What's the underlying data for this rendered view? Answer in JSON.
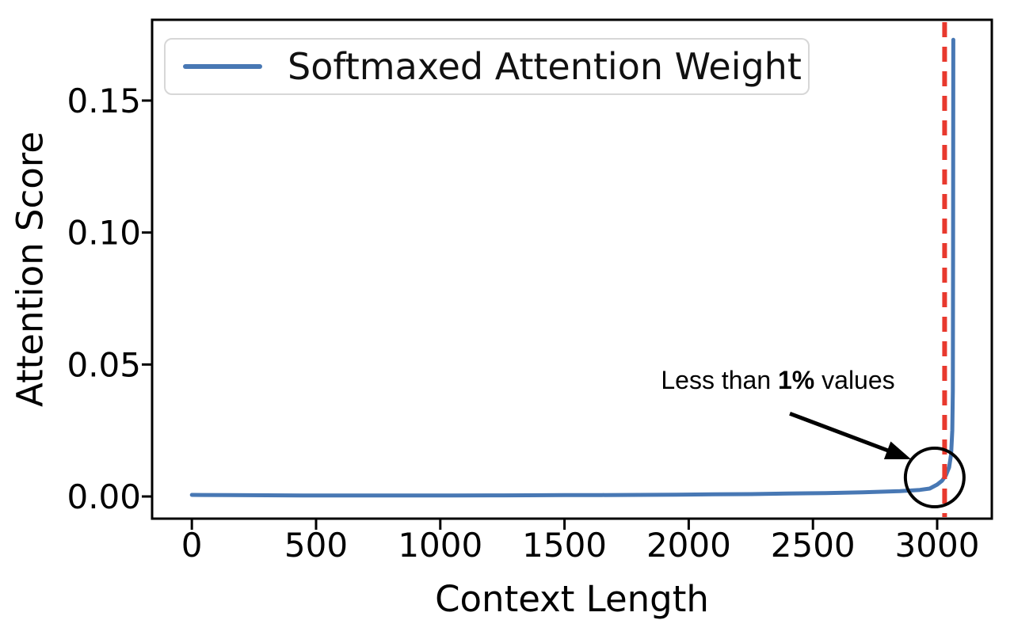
{
  "figure": {
    "background": "#ffffff",
    "text_color": "#000000"
  },
  "chart_data": {
    "type": "line",
    "title": "",
    "xlabel": "Context Length",
    "ylabel": "Attention Score",
    "grid": false,
    "xlim": [
      -160,
      3220
    ],
    "ylim": [
      -0.0084,
      0.1806
    ],
    "xticks": {
      "values": [
        0,
        500,
        1000,
        1500,
        2000,
        2500,
        3000
      ],
      "labels": [
        "0",
        "500",
        "1000",
        "1500",
        "2000",
        "2500",
        "3000"
      ]
    },
    "yticks": {
      "values": [
        0.0,
        0.05,
        0.1,
        0.15
      ],
      "labels": [
        "0.00",
        "0.05",
        "0.10",
        "0.15"
      ]
    },
    "legend": {
      "position": "upper left",
      "entries": [
        {
          "label": "Softmaxed Attention Weight",
          "color": "#4878b4"
        }
      ]
    },
    "series": [
      {
        "name": "Softmaxed Attention Weight",
        "color": "#4878b4",
        "x": [
          0,
          150,
          300,
          450,
          600,
          750,
          900,
          1050,
          1200,
          1350,
          1500,
          1650,
          1800,
          1950,
          2100,
          2250,
          2400,
          2550,
          2700,
          2850,
          2930,
          2970,
          3000,
          3020,
          3035,
          3048,
          3056,
          3061,
          3063,
          3064,
          3065
        ],
        "y": [
          0.0006,
          0.0005,
          0.00045,
          0.0004,
          0.0004,
          0.0004,
          0.0004,
          0.0004,
          0.00042,
          0.00045,
          0.0005,
          0.00055,
          0.0006,
          0.0007,
          0.0008,
          0.0009,
          0.0011,
          0.0013,
          0.0016,
          0.002,
          0.0025,
          0.003,
          0.0045,
          0.006,
          0.008,
          0.011,
          0.016,
          0.025,
          0.04,
          0.09,
          0.173
        ]
      }
    ],
    "vline": {
      "x": 3030,
      "color": "#e8392e",
      "style": "dashed"
    },
    "annotation": {
      "prefix": "Less than ",
      "bold": "1%",
      "suffix": " values",
      "arrow_from": {
        "x": 2407,
        "y": 0.0314
      },
      "arrow_to": {
        "x": 2895,
        "y": 0.0141
      },
      "circle": {
        "x": 2990,
        "y": 0.0072,
        "rx": 118,
        "ry": 0.0111
      },
      "color": "#000000"
    }
  }
}
